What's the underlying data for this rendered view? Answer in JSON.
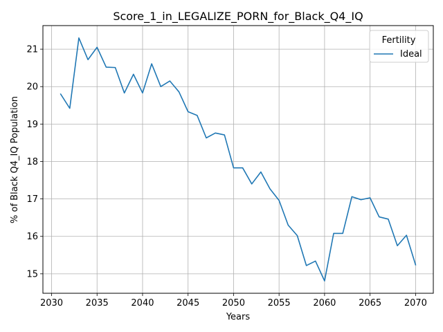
{
  "chart_data": {
    "type": "line",
    "title": "Score_1_in_LEGALIZE_PORN_for_Black_Q4_IQ",
    "xlabel": "Years",
    "ylabel": "% of Black Q4_IQ Population",
    "xlim": [
      2029.05,
      2071.95
    ],
    "ylim": [
      14.48,
      21.63
    ],
    "xticks": [
      2030,
      2035,
      2040,
      2045,
      2050,
      2055,
      2060,
      2065,
      2070
    ],
    "yticks": [
      15,
      16,
      17,
      18,
      19,
      20,
      21
    ],
    "grid": true,
    "legend": {
      "title": "Fertility",
      "position": "top-right"
    },
    "x": [
      2031,
      2032,
      2033,
      2034,
      2035,
      2036,
      2037,
      2038,
      2039,
      2040,
      2041,
      2042,
      2043,
      2044,
      2045,
      2046,
      2047,
      2048,
      2049,
      2050,
      2051,
      2052,
      2053,
      2054,
      2055,
      2056,
      2057,
      2058,
      2059,
      2060,
      2061,
      2062,
      2063,
      2064,
      2065,
      2066,
      2067,
      2068,
      2069,
      2070
    ],
    "series": [
      {
        "name": "Ideal",
        "color": "#1f77b4",
        "values": [
          19.8,
          19.42,
          21.3,
          20.72,
          21.05,
          20.52,
          20.51,
          19.83,
          20.33,
          19.83,
          20.61,
          20.0,
          20.15,
          19.86,
          19.33,
          19.23,
          18.63,
          18.76,
          18.71,
          17.83,
          17.83,
          17.4,
          17.72,
          17.27,
          16.96,
          16.3,
          16.02,
          15.22,
          15.34,
          14.81,
          16.08,
          16.08,
          17.06,
          16.98,
          17.03,
          16.52,
          16.46,
          15.75,
          16.03,
          15.24
        ]
      }
    ]
  }
}
